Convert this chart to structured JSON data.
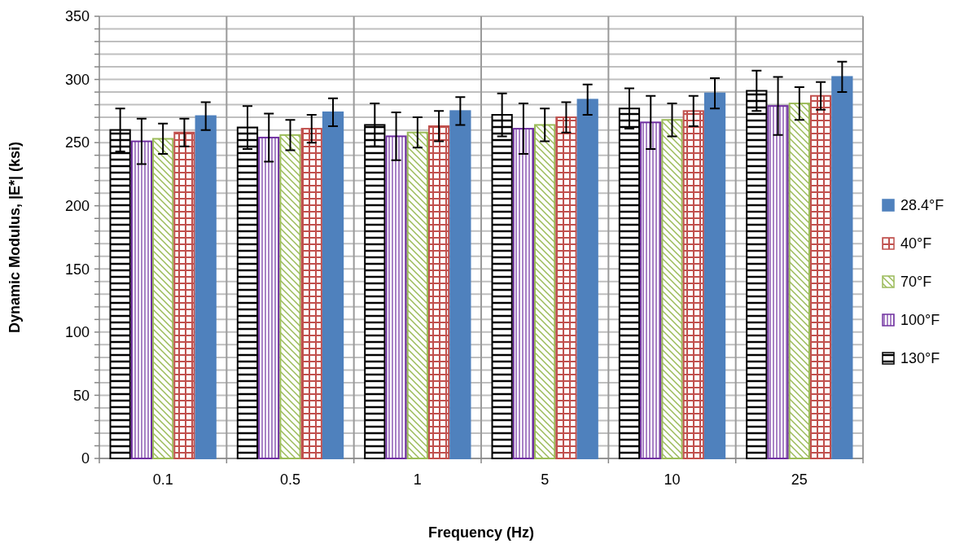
{
  "chart_data": {
    "type": "bar",
    "xlabel": "Frequency (Hz)",
    "ylabel": "Dynamic Modulus, |E*| (ksi)",
    "categories": [
      "0.1",
      "0.5",
      "1",
      "5",
      "10",
      "25"
    ],
    "series": [
      {
        "name": "130°F",
        "color": "#000000",
        "values": [
          260,
          262,
          264,
          272,
          277,
          291
        ],
        "errors": [
          17,
          17,
          17,
          17,
          16,
          16
        ]
      },
      {
        "name": "100°F",
        "color": "#7030a0",
        "values": [
          251,
          254,
          255,
          261,
          266,
          279
        ],
        "errors": [
          18,
          19,
          19,
          20,
          21,
          23
        ]
      },
      {
        "name": "70°F",
        "color": "#9bbb59",
        "values": [
          253,
          256,
          258,
          264,
          268,
          281
        ],
        "errors": [
          12,
          12,
          12,
          13,
          13,
          13
        ]
      },
      {
        "name": "40°F",
        "color": "#c0504d",
        "values": [
          258,
          261,
          263,
          270,
          275,
          287
        ],
        "errors": [
          11,
          11,
          12,
          12,
          12,
          11
        ]
      },
      {
        "name": "28.4°F",
        "color": "#4f81bd",
        "values": [
          271,
          274,
          275,
          284,
          289,
          302
        ],
        "errors": [
          11,
          11,
          11,
          12,
          12,
          12
        ]
      }
    ],
    "ylim": [
      0,
      350
    ],
    "yticks": [
      0,
      {
        "value": 10,
        "label": null
      },
      {
        "value": 20,
        "label": null
      },
      {
        "value": 30,
        "label": null
      },
      {
        "value": 40,
        "label": null
      },
      50,
      {
        "value": 60,
        "label": null
      },
      {
        "value": 70,
        "label": null
      },
      {
        "value": 80,
        "label": null
      },
      {
        "value": 90,
        "label": null
      },
      100,
      {
        "value": 110,
        "label": null
      },
      {
        "value": 120,
        "label": null
      },
      {
        "value": 130,
        "label": null
      },
      {
        "value": 140,
        "label": null
      },
      150,
      {
        "value": 160,
        "label": null
      },
      {
        "value": 170,
        "label": null
      },
      {
        "value": 180,
        "label": null
      },
      {
        "value": 190,
        "label": null
      },
      200,
      {
        "value": 210,
        "label": null
      },
      {
        "value": 220,
        "label": null
      },
      {
        "value": 230,
        "label": null
      },
      {
        "value": 240,
        "label": null
      },
      250,
      {
        "value": 260,
        "label": null
      },
      {
        "value": 270,
        "label": null
      },
      {
        "value": 280,
        "label": null
      },
      {
        "value": 290,
        "label": null
      },
      300,
      {
        "value": 310,
        "label": null
      },
      {
        "value": 320,
        "label": null
      },
      {
        "value": 330,
        "label": null
      },
      {
        "value": 340,
        "label": null
      },
      350
    ],
    "grid": true,
    "legend": "right"
  }
}
